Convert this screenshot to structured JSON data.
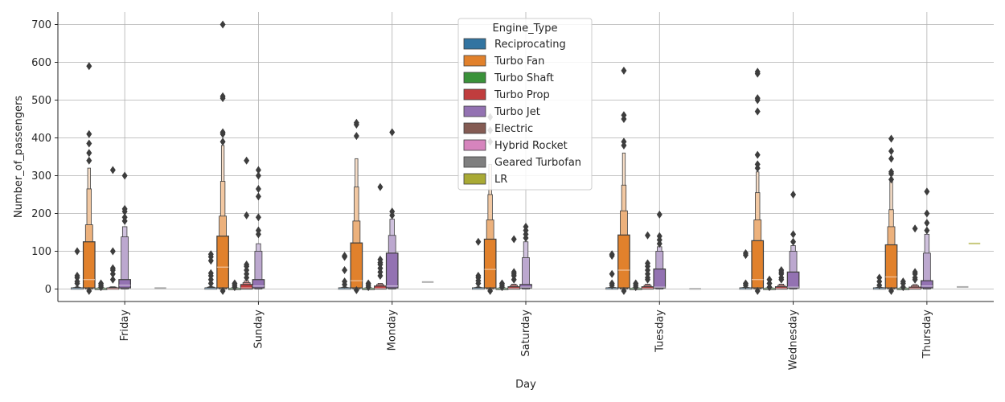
{
  "chart_data": {
    "type": "boxen",
    "xlabel": "Day",
    "ylabel": "Number_of_passengers",
    "ylim": [
      -33,
      733
    ],
    "yticks": [
      0,
      100,
      200,
      300,
      400,
      500,
      600,
      700
    ],
    "grid": true,
    "categories": [
      "Friday",
      "Sunday",
      "Monday",
      "Saturday",
      "Tuesday",
      "Wednesday",
      "Thursday"
    ],
    "legend": {
      "title": "Engine_Type",
      "placement": "top-center",
      "entries": [
        "Reciprocating",
        "Turbo Fan",
        "Turbo Shaft",
        "Turbo Prop",
        "Turbo Jet",
        "Electric",
        "Hybrid Rocket",
        "Geared Turbofan",
        "LR"
      ]
    },
    "colors": {
      "Reciprocating": "#3274a1",
      "Turbo Fan": "#e1812c",
      "Turbo Shaft": "#3a923a",
      "Turbo Prop": "#c03d3e",
      "Turbo Jet": "#9372b2",
      "Electric": "#845b53",
      "Hybrid Rocket": "#d684bd",
      "Geared Turbofan": "#7f7f7f",
      "LR": "#a9aa35"
    },
    "series": [
      {
        "name": "Reciprocating",
        "days": [
          {
            "q1": 0,
            "q3": 3,
            "med": 1,
            "levels": [
              [
                0,
                4
              ],
              [
                0,
                5
              ],
              [
                0,
                6
              ]
            ],
            "outliers": [
              15,
              20,
              30,
              35,
              100
            ]
          },
          {
            "q1": 0,
            "q3": 3,
            "med": 1,
            "levels": [
              [
                0,
                5
              ],
              [
                0,
                6
              ],
              [
                0,
                7
              ]
            ],
            "outliers": [
              15,
              25,
              35,
              42,
              75,
              85,
              92
            ]
          },
          {
            "q1": 0,
            "q3": 3,
            "med": 1,
            "levels": [
              [
                0,
                4
              ],
              [
                0,
                5
              ],
              [
                0,
                6
              ]
            ],
            "outliers": [
              12,
              20,
              50,
              85,
              88
            ]
          },
          {
            "q1": 0,
            "q3": 3,
            "med": 1,
            "levels": [
              [
                0,
                4
              ],
              [
                0,
                5
              ],
              [
                0,
                6
              ]
            ],
            "outliers": [
              15,
              22,
              30,
              35,
              125
            ]
          },
          {
            "q1": 0,
            "q3": 3,
            "med": 1,
            "levels": [
              [
                0,
                4
              ],
              [
                0,
                5
              ],
              [
                0,
                6
              ]
            ],
            "outliers": [
              10,
              15,
              40,
              88,
              92
            ]
          },
          {
            "q1": 0,
            "q3": 3,
            "med": 1,
            "levels": [
              [
                0,
                4
              ],
              [
                0,
                5
              ],
              [
                0,
                6
              ]
            ],
            "outliers": [
              10,
              15,
              90,
              95
            ]
          },
          {
            "q1": 0,
            "q3": 3,
            "med": 1,
            "levels": [
              [
                0,
                4
              ],
              [
                0,
                5
              ],
              [
                0,
                6
              ]
            ],
            "outliers": [
              10,
              20,
              30
            ]
          }
        ]
      },
      {
        "name": "Turbo Fan",
        "days": [
          {
            "q1": 3,
            "q3": 125,
            "med": 25,
            "levels": [
              [
                0,
                170
              ],
              [
                0,
                265
              ],
              [
                0,
                320
              ]
            ],
            "outliers": [
              -5,
              340,
              360,
              385,
              410,
              590
            ]
          },
          {
            "q1": 3,
            "q3": 140,
            "med": 58,
            "levels": [
              [
                0,
                193
              ],
              [
                0,
                285
              ],
              [
                0,
                380
              ]
            ],
            "outliers": [
              -5,
              390,
              410,
              415,
              505,
              510,
              700
            ]
          },
          {
            "q1": 3,
            "q3": 122,
            "med": 22,
            "levels": [
              [
                0,
                180
              ],
              [
                0,
                270
              ],
              [
                0,
                345
              ]
            ],
            "outliers": [
              -3,
              405,
              435,
              440
            ]
          },
          {
            "q1": 3,
            "q3": 132,
            "med": 52,
            "levels": [
              [
                0,
                183
              ],
              [
                0,
                250
              ],
              [
                0,
                330
              ]
            ],
            "outliers": [
              -5,
              390,
              420,
              455
            ]
          },
          {
            "q1": 3,
            "q3": 143,
            "med": 50,
            "levels": [
              [
                0,
                207
              ],
              [
                0,
                275
              ],
              [
                0,
                360
              ]
            ],
            "outliers": [
              -5,
              380,
              390,
              450,
              460,
              578
            ]
          },
          {
            "q1": 3,
            "q3": 128,
            "med": 25,
            "levels": [
              [
                0,
                183
              ],
              [
                0,
                255
              ],
              [
                0,
                310
              ]
            ],
            "outliers": [
              -5,
              320,
              330,
              355,
              470,
              500,
              505,
              570,
              575
            ]
          },
          {
            "q1": 3,
            "q3": 117,
            "med": 32,
            "levels": [
              [
                0,
                165
              ],
              [
                0,
                210
              ],
              [
                0,
                285
              ]
            ],
            "outliers": [
              -5,
              290,
              305,
              310,
              345,
              365,
              398
            ]
          }
        ]
      },
      {
        "name": "Turbo Shaft",
        "days": [
          {
            "q1": 0,
            "q3": 2,
            "med": 1,
            "levels": [
              [
                0,
                3
              ]
            ],
            "outliers": [
              5,
              10,
              15
            ]
          },
          {
            "q1": 0,
            "q3": 2,
            "med": 1,
            "levels": [
              [
                0,
                3
              ]
            ],
            "outliers": [
              5,
              10,
              15
            ]
          },
          {
            "q1": 0,
            "q3": 2,
            "med": 1,
            "levels": [
              [
                0,
                3
              ]
            ],
            "outliers": [
              5,
              10,
              15
            ]
          },
          {
            "q1": 0,
            "q3": 2,
            "med": 1,
            "levels": [
              [
                0,
                3
              ]
            ],
            "outliers": [
              5,
              10,
              15
            ]
          },
          {
            "q1": 0,
            "q3": 2,
            "med": 1,
            "levels": [
              [
                0,
                3
              ]
            ],
            "outliers": [
              5,
              10,
              15
            ]
          },
          {
            "q1": 0,
            "q3": 2,
            "med": 1,
            "levels": [
              [
                0,
                3
              ]
            ],
            "outliers": [
              5,
              15,
              25
            ]
          },
          {
            "q1": 0,
            "q3": 2,
            "med": 1,
            "levels": [
              [
                0,
                3
              ]
            ],
            "outliers": [
              5,
              15,
              20
            ]
          }
        ]
      },
      {
        "name": "Turbo Prop",
        "days": [
          {
            "q1": 0,
            "q3": 3,
            "med": 1,
            "levels": [
              [
                0,
                5
              ],
              [
                0,
                6
              ]
            ],
            "outliers": [
              25,
              40,
              50,
              55,
              100,
              315
            ]
          },
          {
            "q1": 0,
            "q3": 12,
            "med": 3,
            "levels": [
              [
                0,
                17
              ],
              [
                0,
                22
              ]
            ],
            "outliers": [
              30,
              40,
              50,
              60,
              65,
              195,
              340
            ]
          },
          {
            "q1": 0,
            "q3": 8,
            "med": 2,
            "levels": [
              [
                0,
                12
              ],
              [
                0,
                15
              ]
            ],
            "outliers": [
              35,
              45,
              55,
              65,
              70,
              78,
              270
            ]
          },
          {
            "q1": 0,
            "q3": 6,
            "med": 2,
            "levels": [
              [
                0,
                10
              ],
              [
                0,
                13
              ]
            ],
            "outliers": [
              25,
              35,
              40,
              45,
              132
            ]
          },
          {
            "q1": 0,
            "q3": 6,
            "med": 2,
            "levels": [
              [
                0,
                10
              ],
              [
                0,
                13
              ]
            ],
            "outliers": [
              25,
              30,
              40,
              50,
              60,
              68,
              142
            ]
          },
          {
            "q1": 0,
            "q3": 6,
            "med": 2,
            "levels": [
              [
                0,
                10
              ],
              [
                0,
                13
              ]
            ],
            "outliers": [
              25,
              30,
              40,
              45,
              50
            ]
          },
          {
            "q1": 0,
            "q3": 5,
            "med": 2,
            "levels": [
              [
                0,
                9
              ],
              [
                0,
                12
              ]
            ],
            "outliers": [
              25,
              30,
              40,
              45,
              160
            ]
          }
        ]
      },
      {
        "name": "Turbo Jet",
        "days": [
          {
            "q1": 3,
            "q3": 25,
            "med": 10,
            "levels": [
              [
                0,
                138
              ],
              [
                0,
                165
              ]
            ],
            "outliers": [
              180,
              190,
              205,
              212,
              300
            ]
          },
          {
            "q1": 3,
            "q3": 25,
            "med": 8,
            "levels": [
              [
                0,
                100
              ],
              [
                0,
                120
              ]
            ],
            "outliers": [
              145,
              155,
              190,
              245,
              265,
              300,
              315
            ]
          },
          {
            "q1": 3,
            "q3": 95,
            "med": 8,
            "levels": [
              [
                0,
                142
              ],
              [
                0,
                185
              ]
            ],
            "outliers": [
              195,
              205,
              415
            ]
          },
          {
            "q1": 3,
            "q3": 12,
            "med": 5,
            "levels": [
              [
                0,
                83
              ],
              [
                0,
                125
              ]
            ],
            "outliers": [
              135,
              145,
              155,
              165
            ]
          },
          {
            "q1": 3,
            "q3": 53,
            "med": 5,
            "levels": [
              [
                0,
                100
              ],
              [
                0,
                112
              ]
            ],
            "outliers": [
              120,
              130,
              140,
              197
            ]
          },
          {
            "q1": 3,
            "q3": 45,
            "med": 5,
            "levels": [
              [
                0,
                100
              ],
              [
                0,
                115
              ]
            ],
            "outliers": [
              125,
              145,
              250
            ]
          },
          {
            "q1": 3,
            "q3": 22,
            "med": 8,
            "levels": [
              [
                0,
                95
              ],
              [
                0,
                145
              ]
            ],
            "outliers": [
              155,
              175,
              200,
              258
            ]
          }
        ]
      },
      {
        "name": "Geared Turbofan",
        "days": [
          {
            "q1": 2,
            "q3": 3,
            "med": 2.5,
            "levels": [],
            "outliers": []
          },
          null,
          {
            "q1": 18,
            "q3": 19,
            "med": 18.5,
            "levels": [],
            "outliers": []
          },
          null,
          {
            "q1": 0,
            "q3": 1,
            "med": 0.5,
            "levels": [],
            "outliers": []
          },
          null,
          {
            "q1": 5,
            "q3": 6,
            "med": 5.5,
            "levels": [],
            "outliers": []
          }
        ]
      },
      {
        "name": "LR",
        "days": [
          null,
          null,
          null,
          null,
          null,
          null,
          {
            "q1": 120,
            "q3": 121,
            "med": 120.5,
            "levels": [],
            "outliers": []
          }
        ]
      }
    ]
  }
}
